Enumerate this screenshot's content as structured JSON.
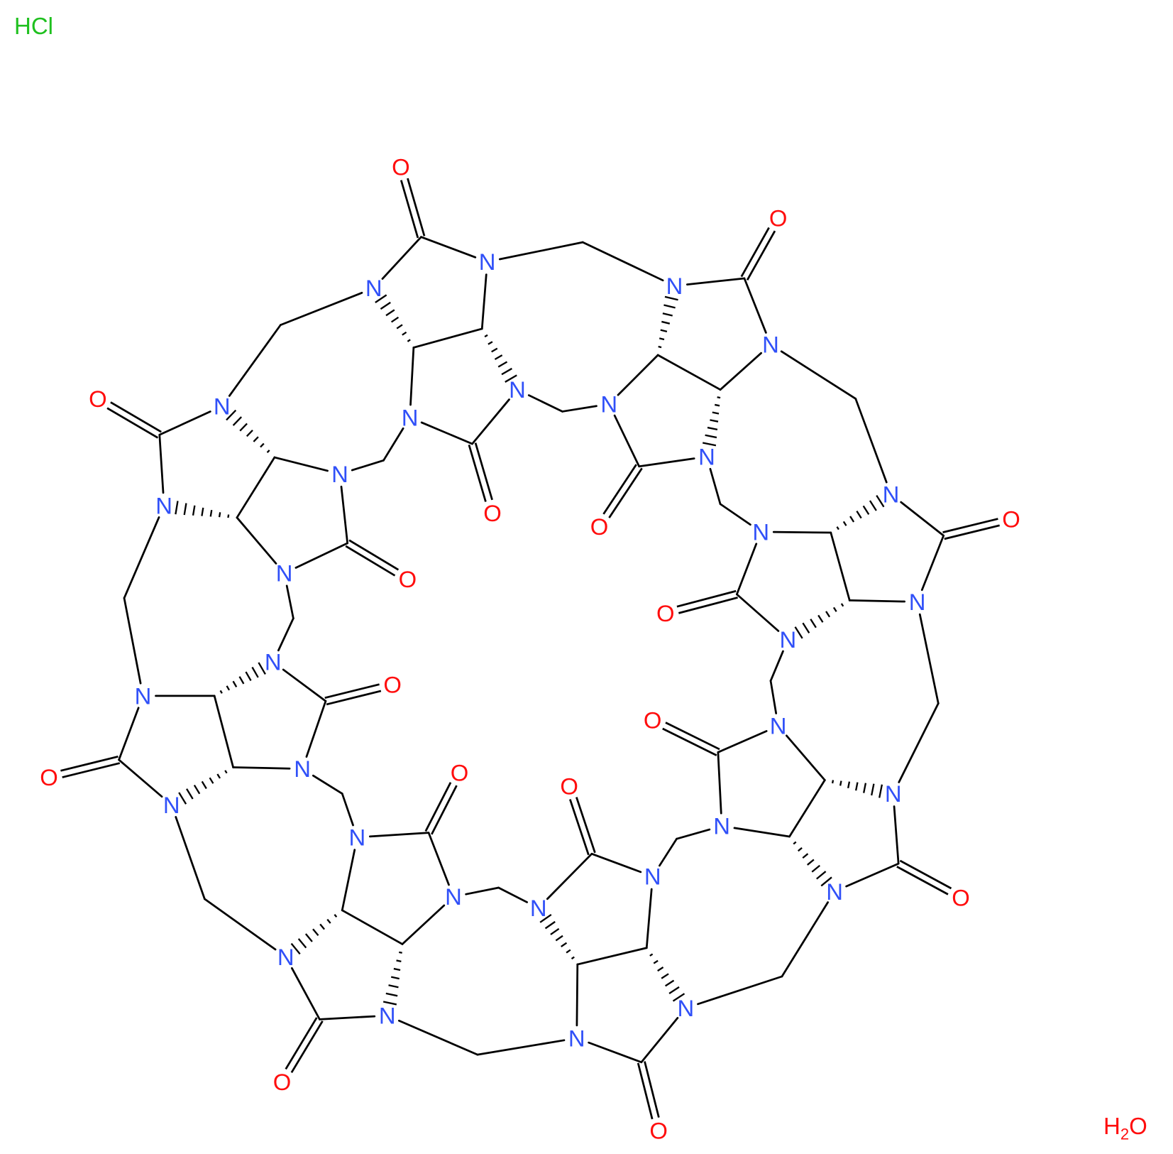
{
  "fragments": {
    "hcl": "HCl",
    "water_h": "H",
    "water_sub": "2",
    "water_o": "O"
  },
  "colors": {
    "N": "#3050F8",
    "O": "#FF0D0D",
    "Cl_fragment": "#1FC01F",
    "bond": "#000000"
  },
  "molecule": {
    "unit_atoms": {
      "c1": "C",
      "o1": "O",
      "n1": "N",
      "n2": "N",
      "h1": "C",
      "h2": "C",
      "n3": "N",
      "n4": "N",
      "c2": "C",
      "o2": "O"
    },
    "unit_bonds": [
      "c1=o1",
      "c1-n1",
      "c1-n2",
      "n1-h1",
      "n2-h2",
      "h1-h2",
      "h1-n3",
      "h2-n4",
      "n3-c2",
      "n4-c2",
      "c2=o2"
    ],
    "units": [
      {
        "id": "u1",
        "hashed": [
          "h1>n1",
          "h2>n4"
        ]
      },
      {
        "id": "u2",
        "hashed": [
          "h1>n1",
          "h2>n4"
        ]
      },
      {
        "id": "u3",
        "hashed": [
          "h1>n1",
          "h2>n4"
        ]
      },
      {
        "id": "u4",
        "hashed": [
          "h1>n1",
          "h2>n2"
        ]
      },
      {
        "id": "u5",
        "hashed": [
          "h1>n1",
          "h2>n4"
        ]
      },
      {
        "id": "u6",
        "hashed": [
          "h1>n1",
          "h2>n2"
        ]
      },
      {
        "id": "u7",
        "hashed": [
          "h1>n1",
          "h2>n4"
        ]
      },
      {
        "id": "u8",
        "hashed": [
          "h1>n1",
          "h2>n2"
        ]
      }
    ],
    "bridges": [
      {
        "id": "m1",
        "between": [
          "u1.n2",
          "u2.n1"
        ]
      },
      {
        "id": "m2",
        "between": [
          "u1.n4",
          "u2.n3"
        ]
      },
      {
        "id": "m3",
        "between": [
          "u2.n2",
          "u3.n1"
        ]
      },
      {
        "id": "m4",
        "between": [
          "u2.n4",
          "u3.n3"
        ]
      },
      {
        "id": "m5",
        "between": [
          "u3.n2",
          "u4.n1"
        ]
      },
      {
        "id": "m6",
        "between": [
          "u3.n4",
          "u4.n3"
        ]
      },
      {
        "id": "m7",
        "between": [
          "u4.n4",
          "u5.n3"
        ]
      },
      {
        "id": "m8",
        "between": [
          "u4.n2",
          "u5.n1"
        ]
      },
      {
        "id": "m9",
        "between": [
          "u6.n3",
          "u5.n4"
        ]
      },
      {
        "id": "m10",
        "between": [
          "u6.n1",
          "u5.n2"
        ]
      },
      {
        "id": "m11",
        "between": [
          "u7.n3",
          "u6.n4"
        ]
      },
      {
        "id": "m12",
        "between": [
          "u7.n1",
          "u6.n2"
        ]
      },
      {
        "id": "m13",
        "between": [
          "u8.n3",
          "u7.n4"
        ]
      },
      {
        "id": "m14",
        "between": [
          "u8.n1",
          "u7.n2"
        ]
      },
      {
        "id": "m15",
        "between": [
          "u8.n2",
          "u1.n1"
        ]
      },
      {
        "id": "m16",
        "between": [
          "u8.n4",
          "u1.n3"
        ]
      }
    ]
  }
}
